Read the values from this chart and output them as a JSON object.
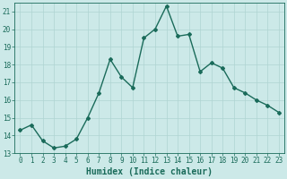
{
  "x": [
    0,
    1,
    2,
    3,
    4,
    5,
    6,
    7,
    8,
    9,
    10,
    11,
    12,
    13,
    14,
    15,
    16,
    17,
    18,
    19,
    20,
    21,
    22,
    23
  ],
  "y": [
    14.3,
    14.6,
    13.7,
    13.3,
    13.4,
    13.8,
    15.0,
    16.4,
    18.3,
    17.3,
    16.7,
    19.5,
    20.0,
    21.3,
    19.6,
    19.7,
    17.6,
    18.1,
    17.8,
    16.7,
    16.4,
    16.0,
    15.7,
    15.3
  ],
  "xlabel": "Humidex (Indice chaleur)",
  "xlim": [
    -0.5,
    23.5
  ],
  "ylim": [
    13,
    21.5
  ],
  "yticks": [
    13,
    14,
    15,
    16,
    17,
    18,
    19,
    20,
    21
  ],
  "xticks": [
    0,
    1,
    2,
    3,
    4,
    5,
    6,
    7,
    8,
    9,
    10,
    11,
    12,
    13,
    14,
    15,
    16,
    17,
    18,
    19,
    20,
    21,
    22,
    23
  ],
  "line_color": "#1a6b5a",
  "marker": "D",
  "marker_size": 2.0,
  "bg_color": "#cce9e8",
  "grid_color": "#afd4d2",
  "tick_label_fontsize": 5.5,
  "xlabel_fontsize": 7.0,
  "line_width": 1.0
}
